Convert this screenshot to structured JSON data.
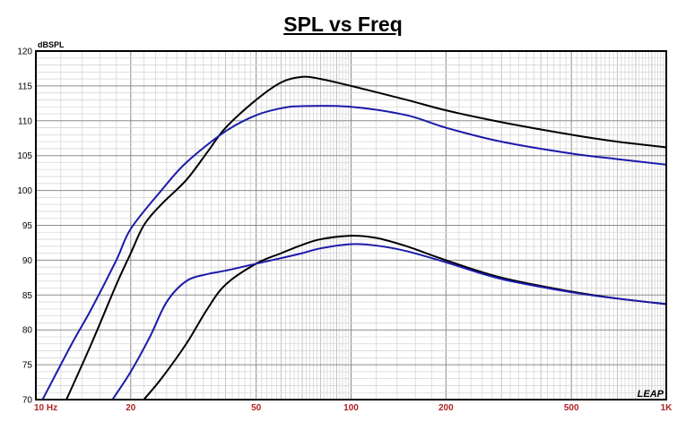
{
  "chart_data": {
    "type": "line",
    "title": "SPL vs Freq",
    "ylabel": "dBSPL",
    "xlabel": "",
    "x_scale": "log",
    "xlim": [
      10,
      1000
    ],
    "ylim": [
      70,
      120
    ],
    "y_ticks": [
      "120",
      "115",
      "110",
      "105",
      "100",
      "95",
      "90",
      "85",
      "80",
      "75",
      "70"
    ],
    "x_ticks": [
      {
        "value": 10,
        "label": "10  Hz"
      },
      {
        "value": 20,
        "label": "20"
      },
      {
        "value": 50,
        "label": "50"
      },
      {
        "value": 100,
        "label": "100"
      },
      {
        "value": 200,
        "label": "200"
      },
      {
        "value": 500,
        "label": "500"
      },
      {
        "value": 1000,
        "label": "1K"
      }
    ],
    "grid": true,
    "logo_text": "LEAP",
    "series": [
      {
        "color": "#000000",
        "points": [
          [
            12.5,
            70
          ],
          [
            15,
            78
          ],
          [
            18,
            86.5
          ],
          [
            20,
            91
          ],
          [
            22,
            95
          ],
          [
            25,
            98
          ],
          [
            30,
            101.5
          ],
          [
            35,
            105.5
          ],
          [
            40,
            109
          ],
          [
            50,
            113
          ],
          [
            60,
            115.5
          ],
          [
            70,
            116.3
          ],
          [
            80,
            116
          ],
          [
            100,
            115
          ],
          [
            150,
            113
          ],
          [
            200,
            111.5
          ],
          [
            300,
            109.8
          ],
          [
            500,
            108
          ],
          [
            700,
            107
          ],
          [
            1000,
            106.2
          ]
        ]
      },
      {
        "color": "#1a1aaa",
        "points": [
          [
            10.5,
            70
          ],
          [
            13,
            78
          ],
          [
            15,
            83
          ],
          [
            18,
            90
          ],
          [
            20,
            94.5
          ],
          [
            25,
            100
          ],
          [
            30,
            104
          ],
          [
            40,
            108.5
          ],
          [
            50,
            110.8
          ],
          [
            60,
            111.8
          ],
          [
            70,
            112.1
          ],
          [
            100,
            112
          ],
          [
            150,
            110.8
          ],
          [
            200,
            109
          ],
          [
            300,
            107
          ],
          [
            500,
            105.3
          ],
          [
            700,
            104.5
          ],
          [
            1000,
            103.7
          ]
        ]
      },
      {
        "color": "#000000",
        "points": [
          [
            22,
            70
          ],
          [
            25,
            73
          ],
          [
            30,
            78
          ],
          [
            35,
            83
          ],
          [
            40,
            86.5
          ],
          [
            50,
            89.5
          ],
          [
            60,
            91
          ],
          [
            70,
            92.2
          ],
          [
            80,
            93
          ],
          [
            100,
            93.5
          ],
          [
            120,
            93.2
          ],
          [
            150,
            92
          ],
          [
            200,
            90
          ],
          [
            300,
            87.5
          ],
          [
            500,
            85.5
          ],
          [
            700,
            84.5
          ],
          [
            1000,
            83.7
          ]
        ]
      },
      {
        "color": "#1a1aaa",
        "points": [
          [
            17.5,
            70
          ],
          [
            20,
            74
          ],
          [
            23,
            79
          ],
          [
            26,
            84
          ],
          [
            30,
            87
          ],
          [
            35,
            88
          ],
          [
            40,
            88.5
          ],
          [
            50,
            89.5
          ],
          [
            60,
            90.3
          ],
          [
            70,
            91
          ],
          [
            80,
            91.7
          ],
          [
            100,
            92.3
          ],
          [
            120,
            92.1
          ],
          [
            150,
            91.3
          ],
          [
            200,
            89.7
          ],
          [
            300,
            87.3
          ],
          [
            500,
            85.4
          ],
          [
            700,
            84.5
          ],
          [
            1000,
            83.7
          ]
        ]
      }
    ]
  }
}
